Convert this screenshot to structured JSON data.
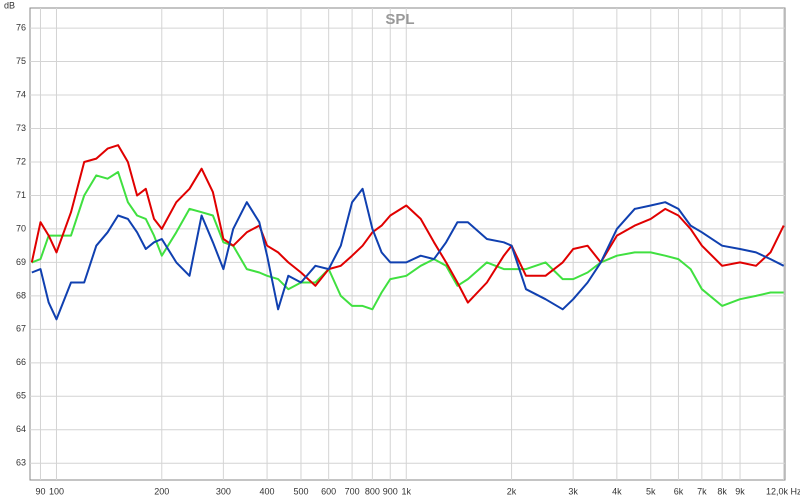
{
  "chart_data": {
    "type": "line",
    "title": "SPL",
    "y_label": "dB",
    "xscale": "log",
    "grid": true,
    "xlim": [
      84,
      12100
    ],
    "ylim": [
      62.5,
      76.6
    ],
    "xticks": [
      90,
      100,
      200,
      300,
      400,
      500,
      600,
      700,
      800,
      900,
      {
        "value": 1000,
        "label": "1k"
      },
      {
        "value": 2000,
        "label": "2k"
      },
      {
        "value": 3000,
        "label": "3k"
      },
      {
        "value": 4000,
        "label": "4k"
      },
      {
        "value": 5000,
        "label": "5k"
      },
      {
        "value": 6000,
        "label": "6k"
      },
      {
        "value": 7000,
        "label": "7k"
      },
      {
        "value": 8000,
        "label": "8k"
      },
      {
        "value": 9000,
        "label": "9k"
      },
      {
        "value": 12000,
        "label": "12,0k Hz"
      }
    ],
    "yticks": [
      63,
      64,
      65,
      66,
      67,
      68,
      69,
      70,
      71,
      72,
      73,
      74,
      75,
      76
    ],
    "x": [
      85,
      90,
      95,
      100,
      110,
      120,
      130,
      140,
      150,
      160,
      170,
      180,
      190,
      200,
      220,
      240,
      260,
      280,
      300,
      320,
      350,
      380,
      400,
      430,
      460,
      500,
      550,
      600,
      650,
      700,
      750,
      800,
      850,
      900,
      1000,
      1100,
      1200,
      1300,
      1400,
      1500,
      1700,
      1900,
      2000,
      2200,
      2500,
      2800,
      3000,
      3300,
      3600,
      4000,
      4500,
      5000,
      5500,
      6000,
      6500,
      7000,
      8000,
      9000,
      10000,
      11000,
      12000
    ],
    "series": [
      {
        "color": "#40e040",
        "values": [
          69.0,
          69.1,
          69.8,
          69.8,
          69.8,
          71.0,
          71.6,
          71.5,
          71.7,
          70.8,
          70.4,
          70.3,
          69.8,
          69.2,
          69.9,
          70.6,
          70.5,
          70.4,
          69.6,
          69.5,
          68.8,
          68.7,
          68.6,
          68.5,
          68.2,
          68.4,
          68.4,
          68.8,
          68.0,
          67.7,
          67.7,
          67.6,
          68.1,
          68.5,
          68.6,
          68.9,
          69.1,
          68.9,
          68.3,
          68.5,
          69.0,
          68.8,
          68.8,
          68.8,
          69.0,
          68.5,
          68.5,
          68.7,
          69.0,
          69.2,
          69.3,
          69.3,
          69.2,
          69.1,
          68.8,
          68.2,
          67.7,
          67.9,
          68.0,
          68.1,
          68.1
        ]
      },
      {
        "color": "#e00000",
        "values": [
          69.0,
          70.2,
          69.8,
          69.3,
          70.5,
          72.0,
          72.1,
          72.4,
          72.5,
          72.0,
          71.0,
          71.2,
          70.3,
          70.0,
          70.8,
          71.2,
          71.8,
          71.1,
          69.7,
          69.5,
          69.9,
          70.1,
          69.5,
          69.3,
          69.0,
          68.7,
          68.3,
          68.8,
          68.9,
          69.2,
          69.5,
          69.9,
          70.1,
          70.4,
          70.7,
          70.3,
          69.6,
          69.0,
          68.4,
          67.8,
          68.4,
          69.2,
          69.5,
          68.6,
          68.6,
          69.0,
          69.4,
          69.5,
          69.0,
          69.8,
          70.1,
          70.3,
          70.6,
          70.4,
          70.0,
          69.5,
          68.9,
          69.0,
          68.9,
          69.3,
          70.1
        ]
      },
      {
        "color": "#1040b0",
        "values": [
          68.7,
          68.8,
          67.8,
          67.3,
          68.4,
          68.4,
          69.5,
          69.9,
          70.4,
          70.3,
          69.9,
          69.4,
          69.6,
          69.7,
          69.0,
          68.6,
          70.4,
          69.6,
          68.8,
          70.0,
          70.8,
          70.2,
          69.2,
          67.6,
          68.6,
          68.4,
          68.9,
          68.8,
          69.5,
          70.8,
          71.2,
          70.0,
          69.3,
          69.0,
          69.0,
          69.2,
          69.1,
          69.6,
          70.2,
          70.2,
          69.7,
          69.6,
          69.5,
          68.2,
          67.9,
          67.6,
          67.9,
          68.4,
          69.0,
          70.0,
          70.6,
          70.7,
          70.8,
          70.6,
          70.1,
          69.9,
          69.5,
          69.4,
          69.3,
          69.1,
          68.9
        ]
      }
    ]
  }
}
